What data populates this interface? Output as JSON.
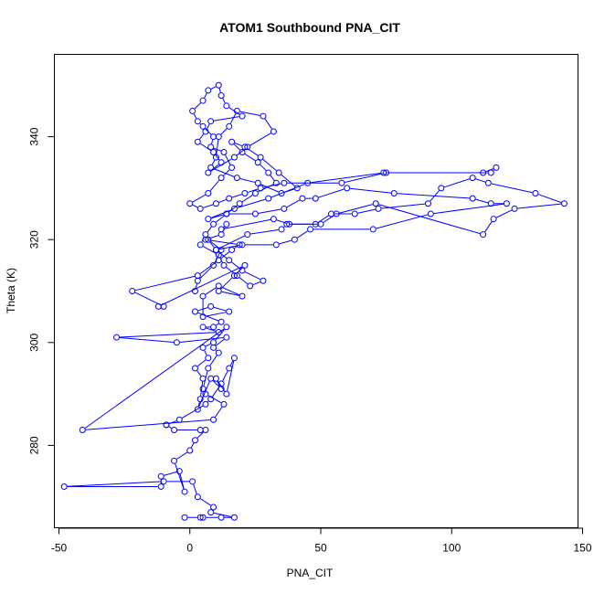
{
  "chart_data": {
    "type": "line",
    "title": "ATOM1 Southbound PNA_CIT",
    "xlabel": "PNA_CIT",
    "ylabel": "Theta (K)",
    "xlim": [
      -50,
      150
    ],
    "ylim": [
      264,
      356
    ],
    "x_ticks": [
      -50,
      0,
      50,
      100,
      150
    ],
    "y_ticks": [
      280,
      300,
      320,
      340
    ],
    "x_tick_labels": [
      "-50",
      "0",
      "50",
      "100",
      "150"
    ],
    "y_tick_labels": [
      "280",
      "300",
      "320",
      "340"
    ],
    "grid": false,
    "legend": "none",
    "markers": "open-circle",
    "color": "#0000ff",
    "series": [
      {
        "x": [
          -2,
          4,
          5,
          12,
          17,
          8,
          9,
          3,
          1,
          -10,
          -48,
          -11,
          -11,
          -4,
          -2,
          -6,
          0,
          2,
          6,
          4,
          -6,
          -9,
          -9,
          -4,
          6,
          8,
          12,
          15,
          17,
          14,
          10,
          12,
          8,
          3,
          4,
          5,
          2,
          7,
          5,
          9,
          14,
          -41,
          9,
          13,
          6,
          5,
          7,
          11,
          9,
          14,
          -5,
          -28,
          11,
          5,
          9,
          12,
          2,
          8,
          15,
          5,
          5,
          11,
          20,
          11,
          17,
          21,
          -12,
          -10,
          -22,
          3,
          11,
          16,
          19,
          6,
          12,
          14,
          12,
          32,
          38,
          50,
          56,
          71,
          112,
          116,
          124,
          143,
          132,
          114,
          108,
          96,
          91,
          72,
          63,
          54,
          48,
          37,
          35,
          22,
          10,
          20,
          33,
          40,
          46,
          70,
          92,
          121,
          115,
          108,
          78,
          60,
          48,
          43,
          36,
          25,
          14,
          7,
          17,
          30,
          45,
          74,
          115,
          117,
          112,
          75,
          58,
          36,
          27,
          21,
          15,
          10,
          4,
          0,
          7,
          12,
          16,
          13,
          8,
          9,
          5,
          3,
          1,
          5,
          7,
          11,
          12,
          14,
          20,
          8,
          6,
          3,
          9,
          12,
          7,
          17,
          22,
          32,
          28,
          18,
          15,
          11,
          10,
          8,
          18,
          26,
          35,
          41,
          34,
          27,
          21,
          16,
          20,
          26,
          30,
          33,
          25,
          19,
          14,
          9,
          6,
          4,
          11,
          13,
          18,
          23,
          28,
          20,
          15,
          10,
          7,
          12,
          9,
          3,
          2
        ],
        "y": [
          266,
          266,
          266,
          266,
          266,
          267,
          268,
          270,
          273,
          273,
          272,
          272,
          274,
          275,
          271,
          277,
          279,
          281,
          283,
          283,
          283,
          284,
          284,
          285,
          288,
          289,
          292,
          295,
          297,
          290,
          293,
          291,
          293,
          287,
          289,
          293,
          295,
          297,
          299,
          300,
          303,
          283,
          285,
          288,
          290,
          291,
          295,
          298,
          299,
          301,
          300,
          301,
          302,
          303,
          303,
          304,
          306,
          307,
          306,
          305,
          309,
          311,
          309,
          310,
          313,
          315,
          307,
          307,
          310,
          313,
          316,
          318,
          319,
          320,
          321,
          323,
          322,
          324,
          323,
          323,
          325,
          327,
          321,
          324,
          326,
          327,
          329,
          331,
          332,
          330,
          327,
          326,
          325,
          325,
          323,
          323,
          322,
          321,
          318,
          319,
          319,
          320,
          322,
          322,
          325,
          327,
          327,
          328,
          329,
          330,
          328,
          328,
          326,
          325,
          325,
          324,
          326,
          328,
          331,
          333,
          333,
          334,
          333,
          333,
          331,
          331,
          330,
          329,
          328,
          327,
          326,
          327,
          329,
          332,
          334,
          337,
          338,
          340,
          342,
          343,
          345,
          347,
          349,
          350,
          348,
          346,
          344,
          343,
          341,
          339,
          337,
          335,
          333,
          336,
          338,
          341,
          344,
          345,
          342,
          340,
          336,
          334,
          332,
          331,
          329,
          330,
          333,
          336,
          338,
          339,
          337,
          335,
          333,
          331,
          329,
          327,
          325,
          323,
          321,
          319,
          317,
          315,
          313,
          311,
          312,
          314,
          316,
          318,
          320,
          318,
          315,
          312,
          310
        ]
      }
    ]
  }
}
